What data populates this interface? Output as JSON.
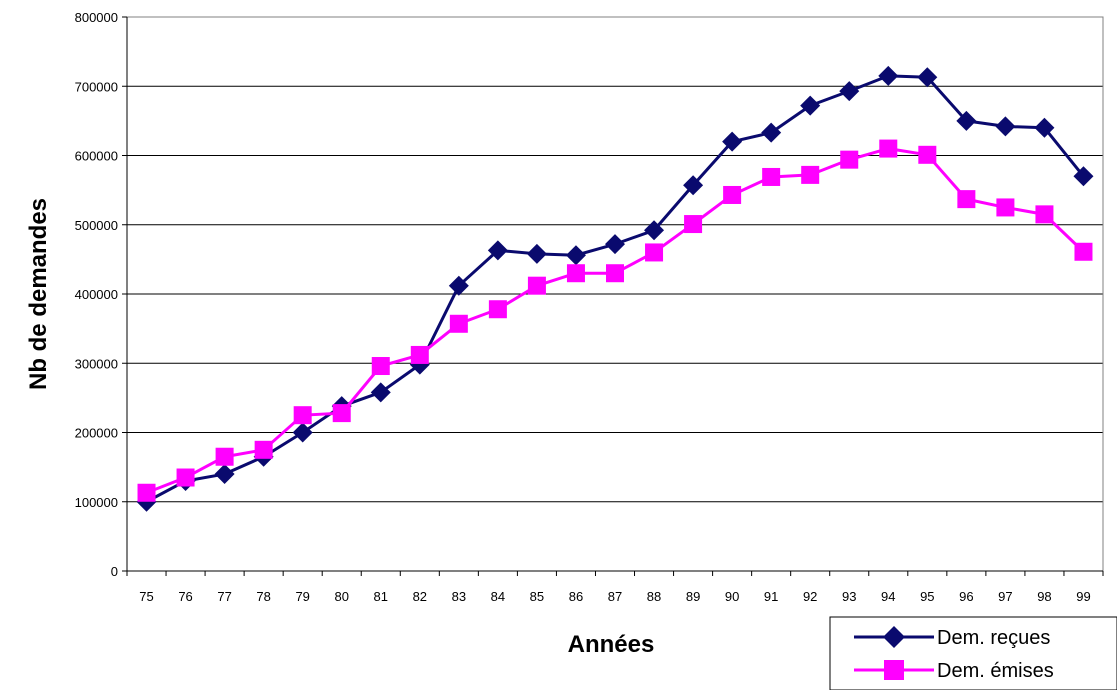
{
  "chart_data": {
    "type": "line",
    "title": "",
    "xlabel": "Années",
    "ylabel": "Nb de demandes",
    "categories": [
      "75",
      "76",
      "77",
      "78",
      "79",
      "80",
      "81",
      "82",
      "83",
      "84",
      "85",
      "86",
      "87",
      "88",
      "89",
      "90",
      "91",
      "92",
      "93",
      "94",
      "95",
      "96",
      "97",
      "98",
      "99"
    ],
    "ylim": [
      0,
      800000
    ],
    "yticks": [
      0,
      100000,
      200000,
      300000,
      400000,
      500000,
      600000,
      700000,
      800000
    ],
    "ytick_labels": [
      "0",
      "100000",
      "200000",
      "300000",
      "400000",
      "500000",
      "600000",
      "700000",
      "800000"
    ],
    "grid": "horizontal",
    "legend_position": "bottom-right",
    "series": [
      {
        "name": "Dem. reçues",
        "color": "#0a0a6e",
        "marker": "diamond",
        "values": [
          100000,
          130000,
          140000,
          165000,
          200000,
          238000,
          258000,
          298000,
          412000,
          463000,
          458000,
          456000,
          472000,
          492000,
          557000,
          620000,
          633000,
          672000,
          693000,
          715000,
          713000,
          650000,
          642000,
          640000,
          570000
        ]
      },
      {
        "name": "Dem. émises",
        "color": "#ff00ff",
        "marker": "square",
        "values": [
          113000,
          135000,
          165000,
          175000,
          225000,
          228000,
          296000,
          312000,
          357000,
          378000,
          412000,
          430000,
          430000,
          460000,
          501000,
          543000,
          569000,
          572000,
          594000,
          610000,
          601000,
          537000,
          525000,
          515000,
          461000
        ]
      }
    ]
  }
}
